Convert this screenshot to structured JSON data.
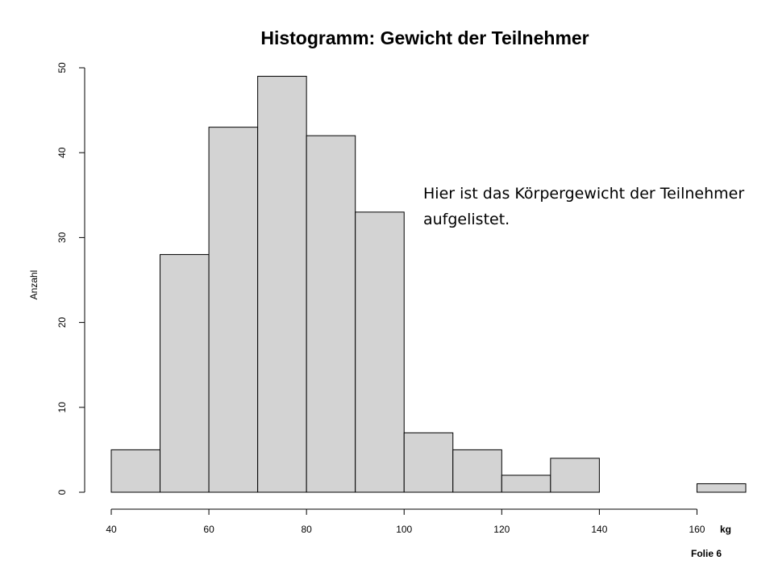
{
  "chart_data": {
    "type": "bar",
    "title": "Histogramm: Gewicht der Teilnehmer",
    "xlabel": "kg",
    "ylabel": "Anzahl",
    "bins": [
      {
        "from": 40,
        "to": 50,
        "count": 5
      },
      {
        "from": 50,
        "to": 60,
        "count": 28
      },
      {
        "from": 60,
        "to": 70,
        "count": 43
      },
      {
        "from": 70,
        "to": 80,
        "count": 49
      },
      {
        "from": 80,
        "to": 90,
        "count": 42
      },
      {
        "from": 90,
        "to": 100,
        "count": 33
      },
      {
        "from": 100,
        "to": 110,
        "count": 7
      },
      {
        "from": 110,
        "to": 120,
        "count": 5
      },
      {
        "from": 120,
        "to": 130,
        "count": 2
      },
      {
        "from": 130,
        "to": 140,
        "count": 4
      },
      {
        "from": 140,
        "to": 150,
        "count": 0
      },
      {
        "from": 150,
        "to": 160,
        "count": 0
      },
      {
        "from": 160,
        "to": 170,
        "count": 1
      }
    ],
    "xlim": [
      40,
      170
    ],
    "ylim": [
      0,
      50
    ],
    "x_ticks": [
      40,
      60,
      80,
      100,
      120,
      140,
      160
    ],
    "y_ticks": [
      0,
      10,
      20,
      30,
      40,
      50
    ],
    "bar_fill": "#d3d3d3",
    "bar_stroke": "#000000",
    "grid": false
  },
  "annotation": {
    "line1": "Hier ist das Körpergewicht der Teilnehmer",
    "line2": "aufgelistet."
  },
  "footer": {
    "slide_label": "Folie  6"
  }
}
